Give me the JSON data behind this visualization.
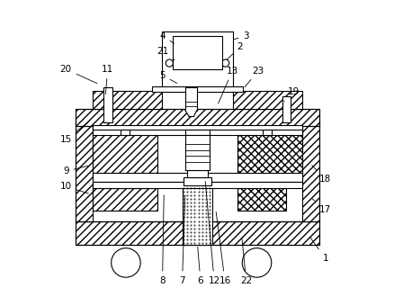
{
  "background_color": "#ffffff",
  "fig_width": 4.39,
  "fig_height": 3.4,
  "dpi": 100,
  "label_positions": {
    "1": [
      0.92,
      0.155,
      0.865,
      0.23
    ],
    "2": [
      0.64,
      0.848,
      0.59,
      0.8
    ],
    "3": [
      0.66,
      0.885,
      0.61,
      0.87
    ],
    "4": [
      0.385,
      0.885,
      0.43,
      0.855
    ],
    "5": [
      0.385,
      0.755,
      0.44,
      0.725
    ],
    "6": [
      0.51,
      0.082,
      0.5,
      0.2
    ],
    "7": [
      0.45,
      0.082,
      0.46,
      0.37
    ],
    "8": [
      0.385,
      0.082,
      0.39,
      0.37
    ],
    "9": [
      0.068,
      0.44,
      0.15,
      0.46
    ],
    "10": [
      0.068,
      0.39,
      0.15,
      0.365
    ],
    "11": [
      0.205,
      0.775,
      0.198,
      0.685
    ],
    "12": [
      0.555,
      0.082,
      0.525,
      0.415
    ],
    "13": [
      0.615,
      0.77,
      0.565,
      0.655
    ],
    "15": [
      0.068,
      0.545,
      0.15,
      0.608
    ],
    "16": [
      0.59,
      0.082,
      0.56,
      0.315
    ],
    "17": [
      0.92,
      0.315,
      0.87,
      0.355
    ],
    "18": [
      0.92,
      0.415,
      0.87,
      0.465
    ],
    "19": [
      0.815,
      0.7,
      0.785,
      0.67
    ],
    "20": [
      0.068,
      0.775,
      0.178,
      0.725
    ],
    "21": [
      0.385,
      0.835,
      0.425,
      0.805
    ],
    "22": [
      0.66,
      0.082,
      0.645,
      0.23
    ],
    "23": [
      0.7,
      0.77,
      0.65,
      0.71
    ]
  }
}
